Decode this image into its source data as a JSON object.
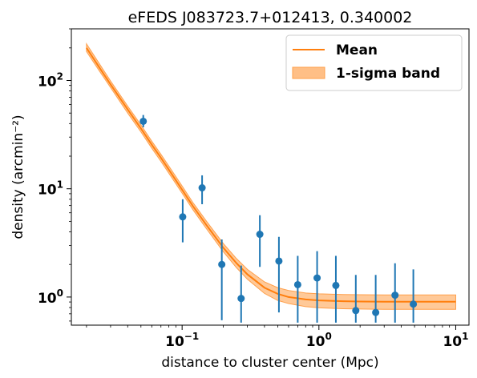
{
  "chart_data": {
    "type": "scatter",
    "title": "eFEDS J083723.7+012413, 0.340002",
    "xlabel": "distance to cluster center (Mpc)",
    "ylabel": "density (arcmin⁻²)",
    "xscale": "log",
    "yscale": "log",
    "xlim": [
      0.0155,
      12.5
    ],
    "ylim": [
      0.55,
      300
    ],
    "x_ticks": [
      {
        "value": 0.1,
        "base": "10",
        "exp": "−1"
      },
      {
        "value": 1,
        "base": "10",
        "exp": "0"
      },
      {
        "value": 10,
        "base": "10",
        "exp": "1"
      }
    ],
    "y_ticks": [
      {
        "value": 1,
        "base": "10",
        "exp": "0"
      },
      {
        "value": 10,
        "base": "10",
        "exp": "1"
      },
      {
        "value": 100,
        "base": "10",
        "exp": "2"
      }
    ],
    "legend": {
      "position": "top-right",
      "entries": [
        {
          "label": "Mean",
          "kind": "line"
        },
        {
          "label": "1-sigma band",
          "kind": "band"
        }
      ]
    },
    "colors": {
      "points": "#1f77b4",
      "mean_line": "#ff7f0e",
      "band_fill": "#ffbf86",
      "band_edge": "#ff9f4a"
    },
    "series": [
      {
        "name": "Mean",
        "kind": "line",
        "x": [
          0.02,
          0.025,
          0.03,
          0.04,
          0.05,
          0.06,
          0.07,
          0.08,
          0.1,
          0.12,
          0.15,
          0.2,
          0.25,
          0.3,
          0.4,
          0.5,
          0.6,
          0.8,
          1.0,
          1.5,
          2.0,
          3.0,
          5.0,
          10.0
        ],
        "y": [
          200,
          130,
          92,
          54,
          36,
          25.5,
          19.3,
          15.0,
          9.8,
          6.9,
          4.65,
          2.85,
          2.05,
          1.62,
          1.22,
          1.07,
          1.0,
          0.95,
          0.93,
          0.915,
          0.91,
          0.905,
          0.905,
          0.905
        ]
      },
      {
        "name": "1-sigma band",
        "kind": "band",
        "x": [
          0.02,
          0.025,
          0.03,
          0.04,
          0.05,
          0.06,
          0.07,
          0.08,
          0.1,
          0.12,
          0.15,
          0.2,
          0.25,
          0.3,
          0.4,
          0.5,
          0.6,
          0.8,
          1.0,
          1.5,
          2.0,
          3.0,
          5.0,
          10.0
        ],
        "lower": [
          185,
          121,
          86,
          50,
          33.5,
          23.7,
          17.9,
          13.9,
          9.1,
          6.4,
          4.3,
          2.62,
          1.86,
          1.46,
          1.08,
          0.93,
          0.87,
          0.815,
          0.795,
          0.78,
          0.775,
          0.77,
          0.77,
          0.77
        ],
        "upper": [
          218,
          141,
          99,
          58,
          38.8,
          27.5,
          20.8,
          16.2,
          10.6,
          7.45,
          5.05,
          3.12,
          2.26,
          1.8,
          1.38,
          1.22,
          1.15,
          1.09,
          1.07,
          1.055,
          1.05,
          1.045,
          1.045,
          1.045
        ]
      },
      {
        "name": "",
        "kind": "errorbar",
        "points": [
          {
            "x": 0.052,
            "y": 42,
            "lo": 37,
            "hi": 48
          },
          {
            "x": 0.101,
            "y": 5.5,
            "lo": 3.2,
            "hi": 8.0
          },
          {
            "x": 0.14,
            "y": 10.2,
            "lo": 7.2,
            "hi": 13.3
          },
          {
            "x": 0.195,
            "y": 2.0,
            "lo": 0.61,
            "hi": 3.4
          },
          {
            "x": 0.27,
            "y": 0.97,
            "lo": 0.58,
            "hi": 1.95
          },
          {
            "x": 0.37,
            "y": 3.8,
            "lo": 1.9,
            "hi": 5.7
          },
          {
            "x": 0.51,
            "y": 2.15,
            "lo": 0.72,
            "hi": 3.6
          },
          {
            "x": 0.7,
            "y": 1.3,
            "lo": 0.58,
            "hi": 2.4
          },
          {
            "x": 0.97,
            "y": 1.5,
            "lo": 0.58,
            "hi": 2.65
          },
          {
            "x": 1.33,
            "y": 1.28,
            "lo": 0.58,
            "hi": 2.4
          },
          {
            "x": 1.86,
            "y": 0.75,
            "lo": 0.58,
            "hi": 1.6
          },
          {
            "x": 2.6,
            "y": 0.72,
            "lo": 0.58,
            "hi": 1.6
          },
          {
            "x": 3.6,
            "y": 1.04,
            "lo": 0.58,
            "hi": 2.05
          },
          {
            "x": 4.9,
            "y": 0.86,
            "lo": 0.58,
            "hi": 1.8
          }
        ]
      }
    ]
  }
}
